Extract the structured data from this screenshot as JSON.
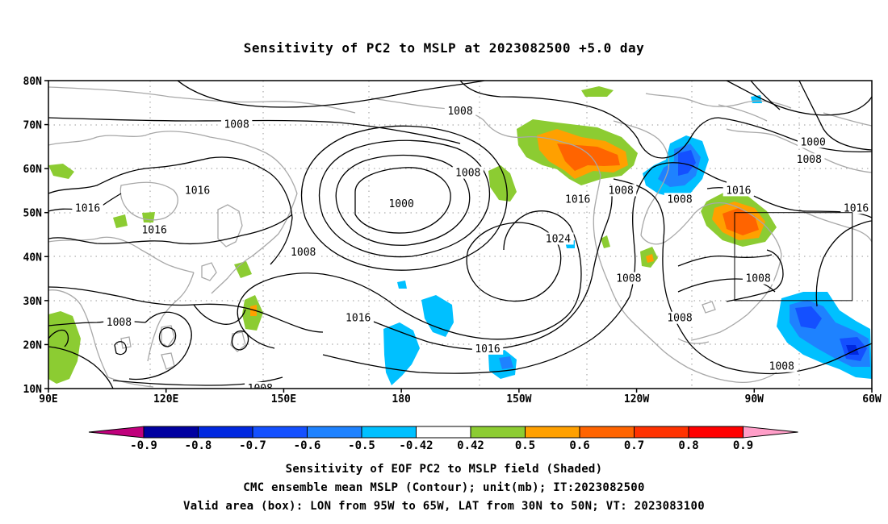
{
  "title": "Sensitivity of PC2 to MSLP at 2023082500 +5.0 day",
  "map": {
    "lon_range": [
      90,
      300
    ],
    "lat_range": [
      10,
      80
    ],
    "lat_labels": [
      "80N",
      "70N",
      "60N",
      "50N",
      "40N",
      "30N",
      "20N",
      "10N"
    ],
    "lon_labels": [
      "90E",
      "120E",
      "150E",
      "180",
      "150W",
      "120W",
      "90W",
      "60W"
    ],
    "valid_box": {
      "lon": [
        265,
        295
      ],
      "lat": [
        30,
        50
      ]
    }
  },
  "contours": [
    {
      "label": "1008",
      "lon": 195,
      "lat": 73
    },
    {
      "label": "1008",
      "lon": 138,
      "lat": 70
    },
    {
      "label": "1008",
      "lon": 284,
      "lat": 62
    },
    {
      "label": "1000",
      "lon": 285,
      "lat": 66
    },
    {
      "label": "1008",
      "lon": 197,
      "lat": 59
    },
    {
      "label": "1000",
      "lon": 180,
      "lat": 52
    },
    {
      "label": "1016",
      "lon": 225,
      "lat": 53
    },
    {
      "label": "1008",
      "lon": 236,
      "lat": 55
    },
    {
      "label": "1008",
      "lon": 251,
      "lat": 53
    },
    {
      "label": "1016",
      "lon": 266,
      "lat": 55
    },
    {
      "label": "1016",
      "lon": 296,
      "lat": 51
    },
    {
      "label": "1016",
      "lon": 128,
      "lat": 55
    },
    {
      "label": "1016",
      "lon": 100,
      "lat": 51
    },
    {
      "label": "1016",
      "lon": 117,
      "lat": 46
    },
    {
      "label": "1008",
      "lon": 155,
      "lat": 41
    },
    {
      "label": "1024",
      "lon": 220,
      "lat": 44
    },
    {
      "label": "1008",
      "lon": 238,
      "lat": 35
    },
    {
      "label": "1008",
      "lon": 271,
      "lat": 35
    },
    {
      "label": "1016",
      "lon": 169,
      "lat": 26
    },
    {
      "label": "1008",
      "lon": 108,
      "lat": 25
    },
    {
      "label": "1016",
      "lon": 202,
      "lat": 19
    },
    {
      "label": "1008",
      "lon": 251,
      "lat": 26
    },
    {
      "label": "1008",
      "lon": 277,
      "lat": 15
    },
    {
      "label": "1008",
      "lon": 144,
      "lat": 10
    }
  ],
  "colorbar": {
    "labels": [
      "-0.9",
      "-0.8",
      "-0.7",
      "-0.6",
      "-0.5",
      "-0.42",
      "0.42",
      "0.5",
      "0.6",
      "0.7",
      "0.8",
      "0.9"
    ],
    "colors": [
      "#0000a0",
      "#0028e0",
      "#1450ff",
      "#1e82ff",
      "#00c0ff",
      "#ffffff",
      "#8ccc32",
      "#ffa000",
      "#ff6400",
      "#ff3200",
      "#ff0000"
    ],
    "low_extension_color": "#c0007c",
    "high_extension_color": "#ff9ec8"
  },
  "captions": {
    "line1": "Sensitivity of EOF PC2 to MSLP field (Shaded)",
    "line2": "CMC ensemble mean MSLP (Contour); unit(mb); IT:2023082500",
    "line3": "Valid area (box): LON from 95W to 65W, LAT from 30N to 50N; VT: 2023083100"
  }
}
